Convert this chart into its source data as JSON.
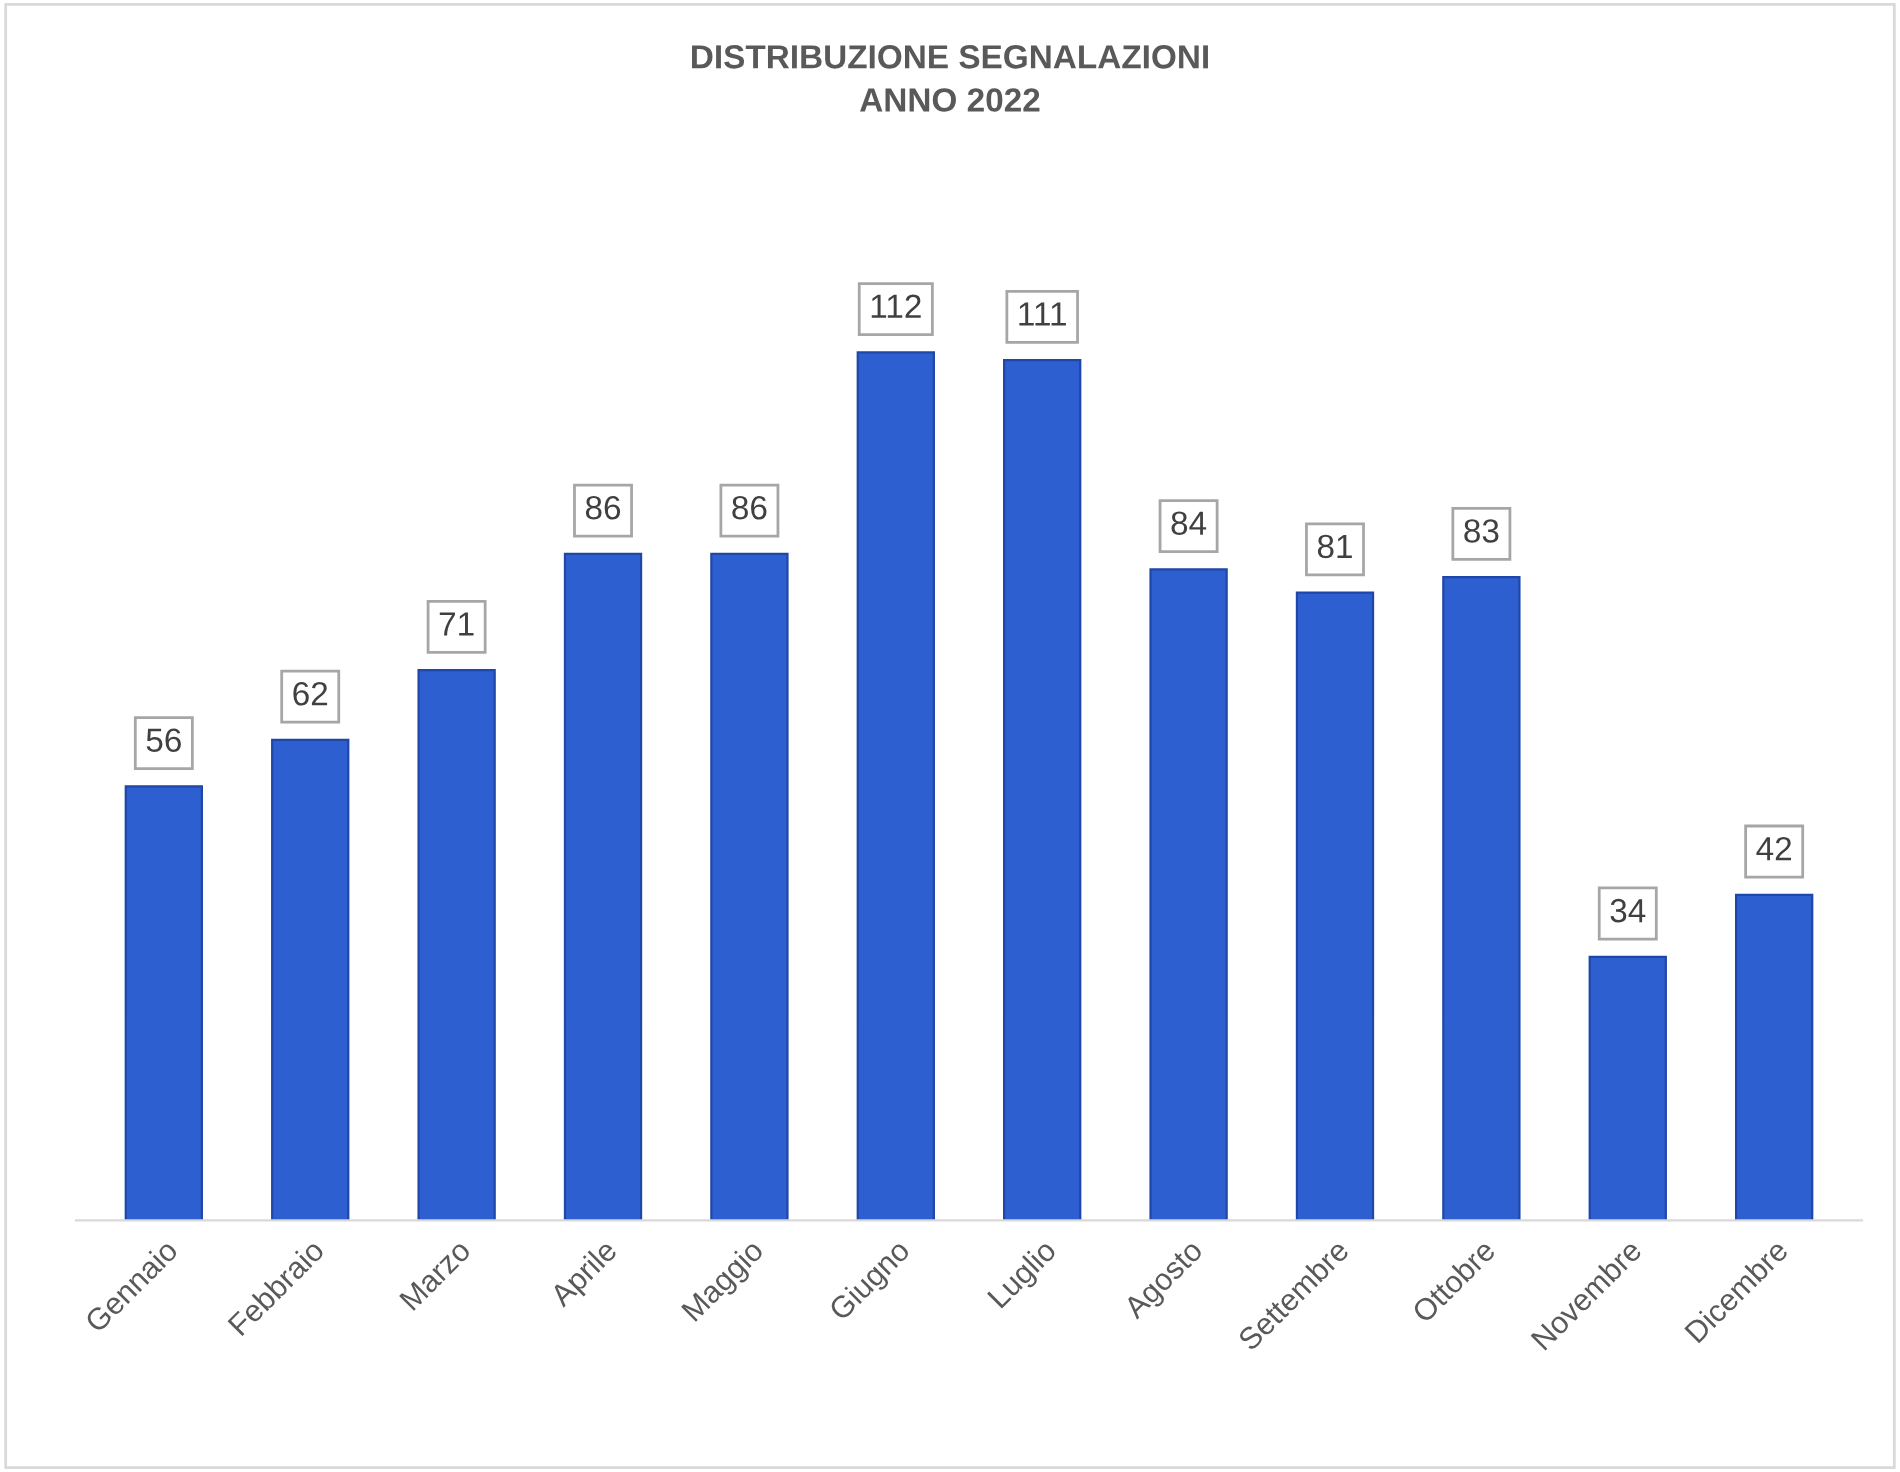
{
  "chart_data": {
    "type": "bar",
    "title": "DISTRIBUZIONE SEGNALAZIONI\nANNO 2022",
    "categories": [
      "Gennaio",
      "Febbraio",
      "Marzo",
      "Aprile",
      "Maggio",
      "Giugno",
      "Luglio",
      "Agosto",
      "Settembre",
      "Ottobre",
      "Novembre",
      "Dicembre"
    ],
    "values": [
      56,
      62,
      71,
      86,
      86,
      112,
      111,
      84,
      81,
      83,
      34,
      42
    ],
    "color": "#2e5fd1",
    "data_labels": true,
    "grid": false,
    "tick_labels": "x"
  }
}
